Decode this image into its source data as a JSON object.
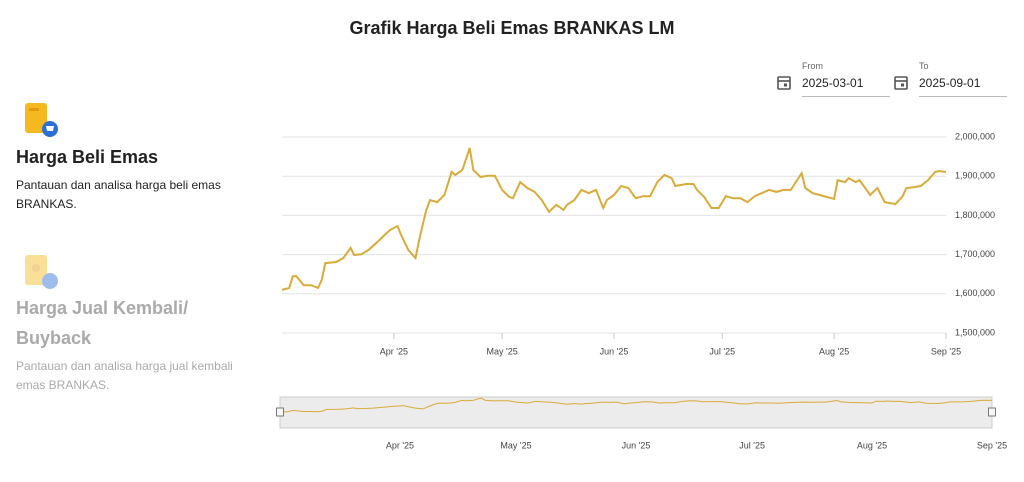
{
  "header": {
    "title": "Grafik Harga Beli Emas BRANKAS LM"
  },
  "date_range": {
    "from": {
      "label": "From",
      "value": "2025-03-01"
    },
    "to": {
      "label": "To",
      "value": "2025-09-01"
    }
  },
  "sidebar": {
    "items": [
      {
        "title": "Harga Beli Emas",
        "description": "Pantauan dan analisa harga beli emas BRANKAS."
      },
      {
        "title": "Harga Jual Kembali/ Buyback",
        "description": "Pantauan dan analisa harga jual kembali emas BRANKAS."
      }
    ]
  },
  "chart_data": {
    "type": "line",
    "color": "#d8ab3a",
    "grid": true,
    "xlim": [
      "2025-03-01",
      "2025-09-01"
    ],
    "xticks": [
      {
        "value": "2025-04-01",
        "label": "Apr '25"
      },
      {
        "value": "2025-05-01",
        "label": "May '25"
      },
      {
        "value": "2025-06-01",
        "label": "Jun '25"
      },
      {
        "value": "2025-07-01",
        "label": "Jul '25"
      },
      {
        "value": "2025-08-01",
        "label": "Aug '25"
      },
      {
        "value": "2025-09-01",
        "label": "Sep '25"
      }
    ],
    "ylim": [
      1500000,
      2000000
    ],
    "yticks": [
      {
        "value": 1500000,
        "label": "1,500,000"
      },
      {
        "value": 1600000,
        "label": "1,600,000"
      },
      {
        "value": 1700000,
        "label": "1,700,000"
      },
      {
        "value": 1800000,
        "label": "1,800,000"
      },
      {
        "value": 1900000,
        "label": "1,900,000"
      },
      {
        "value": 2000000,
        "label": "2,000,000"
      }
    ],
    "x": [
      "2025-03-01",
      "2025-03-03",
      "2025-03-04",
      "2025-03-05",
      "2025-03-07",
      "2025-03-09",
      "2025-03-11",
      "2025-03-12",
      "2025-03-13",
      "2025-03-16",
      "2025-03-18",
      "2025-03-20",
      "2025-03-21",
      "2025-03-23",
      "2025-03-25",
      "2025-03-28",
      "2025-03-30",
      "2025-03-31",
      "2025-04-02",
      "2025-04-03",
      "2025-04-05",
      "2025-04-07",
      "2025-04-08",
      "2025-04-10",
      "2025-04-11",
      "2025-04-13",
      "2025-04-15",
      "2025-04-17",
      "2025-04-18",
      "2025-04-20",
      "2025-04-22",
      "2025-04-23",
      "2025-04-25",
      "2025-04-27",
      "2025-04-29",
      "2025-05-01",
      "2025-05-03",
      "2025-05-04",
      "2025-05-06",
      "2025-05-08",
      "2025-05-10",
      "2025-05-12",
      "2025-05-14",
      "2025-05-16",
      "2025-05-18",
      "2025-05-19",
      "2025-05-21",
      "2025-05-23",
      "2025-05-25",
      "2025-05-27",
      "2025-05-29",
      "2025-05-30",
      "2025-06-01",
      "2025-06-03",
      "2025-06-05",
      "2025-06-07",
      "2025-06-09",
      "2025-06-11",
      "2025-06-13",
      "2025-06-15",
      "2025-06-17",
      "2025-06-18",
      "2025-06-21",
      "2025-06-23",
      "2025-06-24",
      "2025-06-26",
      "2025-06-28",
      "2025-06-30",
      "2025-07-02",
      "2025-07-04",
      "2025-07-06",
      "2025-07-08",
      "2025-07-10",
      "2025-07-12",
      "2025-07-14",
      "2025-07-16",
      "2025-07-18",
      "2025-07-20",
      "2025-07-23",
      "2025-07-24",
      "2025-07-26",
      "2025-07-28",
      "2025-07-30",
      "2025-08-01",
      "2025-08-02",
      "2025-08-04",
      "2025-08-05",
      "2025-08-07",
      "2025-08-08",
      "2025-08-10",
      "2025-08-11",
      "2025-08-13",
      "2025-08-15",
      "2025-08-16",
      "2025-08-18",
      "2025-08-20",
      "2025-08-21",
      "2025-08-23",
      "2025-08-25",
      "2025-08-27",
      "2025-08-29",
      "2025-08-30",
      "2025-09-01"
    ],
    "values": [
      1610000,
      1615000,
      1645000,
      1645000,
      1622000,
      1622000,
      1615000,
      1635000,
      1678000,
      1681000,
      1691000,
      1717000,
      1699000,
      1701000,
      1712000,
      1737000,
      1755000,
      1763000,
      1773000,
      1750000,
      1712000,
      1691000,
      1737000,
      1814000,
      1839000,
      1834000,
      1852000,
      1911000,
      1903000,
      1916000,
      1972000,
      1916000,
      1898000,
      1901000,
      1901000,
      1865000,
      1847000,
      1844000,
      1885000,
      1870000,
      1860000,
      1839000,
      1809000,
      1827000,
      1814000,
      1827000,
      1839000,
      1865000,
      1857000,
      1865000,
      1819000,
      1839000,
      1852000,
      1875000,
      1870000,
      1844000,
      1849000,
      1849000,
      1885000,
      1903000,
      1895000,
      1875000,
      1880000,
      1880000,
      1865000,
      1847000,
      1819000,
      1819000,
      1849000,
      1844000,
      1844000,
      1834000,
      1849000,
      1857000,
      1865000,
      1860000,
      1865000,
      1865000,
      1908000,
      1870000,
      1857000,
      1852000,
      1847000,
      1842000,
      1890000,
      1885000,
      1895000,
      1885000,
      1890000,
      1865000,
      1852000,
      1870000,
      1834000,
      1832000,
      1829000,
      1849000,
      1870000,
      1872000,
      1875000,
      1890000,
      1911000,
      1913000,
      1911000
    ]
  }
}
